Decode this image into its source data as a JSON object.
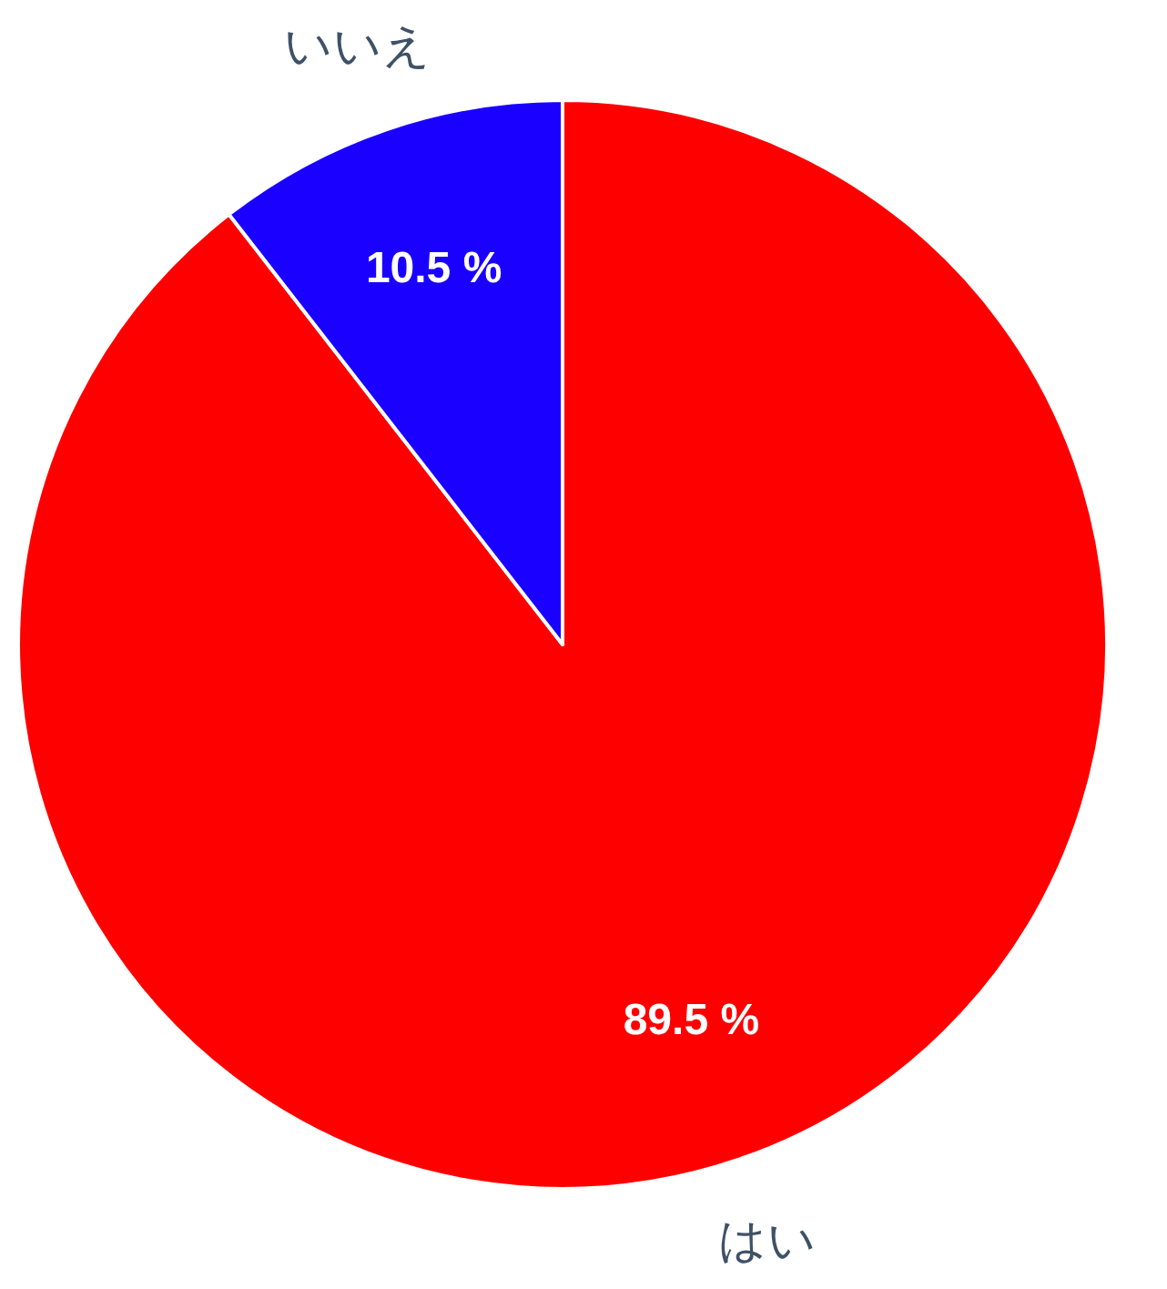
{
  "chart_data": {
    "type": "pie",
    "categories": [
      "はい",
      "いいえ"
    ],
    "values": [
      89.5,
      10.5
    ],
    "colors": [
      "#ff0000",
      "#1a00ff"
    ],
    "value_labels": [
      "89.5 %",
      "10.5 %"
    ]
  }
}
